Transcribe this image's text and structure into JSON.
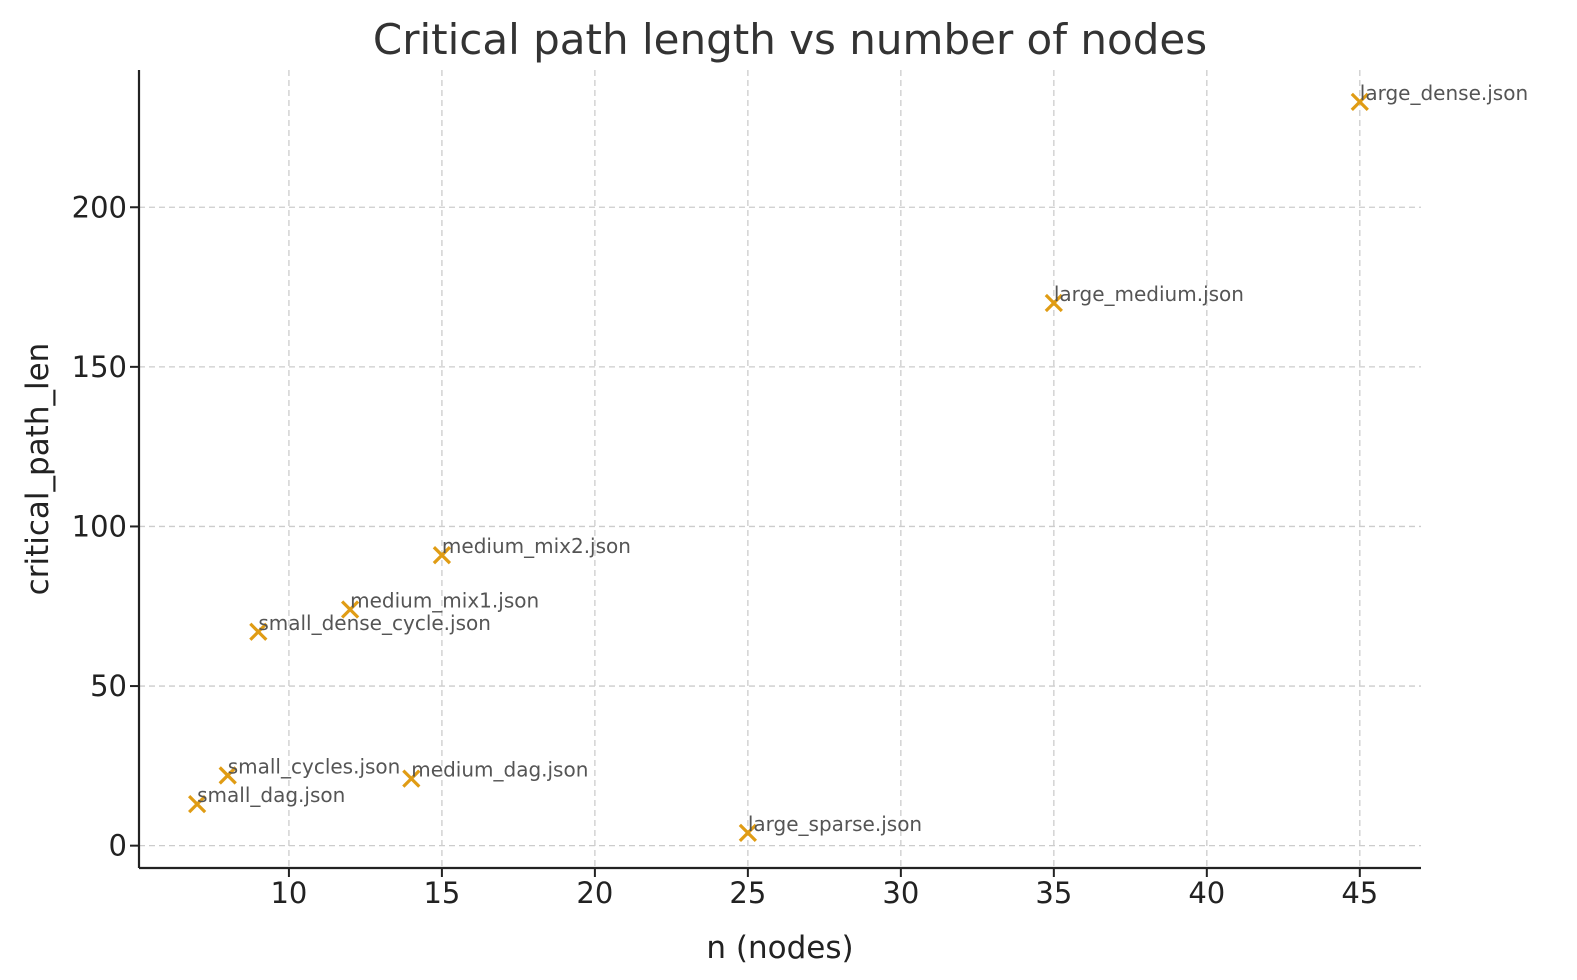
{
  "chart_data": {
    "type": "scatter",
    "title": "Critical path length vs number of nodes",
    "xlabel": "n (nodes)",
    "ylabel": "critical_path_len",
    "xlim": [
      5.1,
      47
    ],
    "ylim": [
      -7,
      243
    ],
    "xticks": [
      10,
      15,
      20,
      25,
      30,
      35,
      40,
      45
    ],
    "yticks": [
      0,
      50,
      100,
      150,
      200
    ],
    "grid": true,
    "marker": "x",
    "marker_color": "#e09c14",
    "points": [
      {
        "label": "small_dag.json",
        "x": 7,
        "y": 13
      },
      {
        "label": "small_cycles.json",
        "x": 8,
        "y": 22
      },
      {
        "label": "small_dense_cycle.json",
        "x": 9,
        "y": 67
      },
      {
        "label": "medium_mix1.json",
        "x": 12,
        "y": 74
      },
      {
        "label": "medium_dag.json",
        "x": 14,
        "y": 21
      },
      {
        "label": "medium_mix2.json",
        "x": 15,
        "y": 91
      },
      {
        "label": "large_sparse.json",
        "x": 25,
        "y": 4
      },
      {
        "label": "large_medium.json",
        "x": 35,
        "y": 170
      },
      {
        "label": "large_dense.json",
        "x": 45,
        "y": 233
      }
    ]
  }
}
